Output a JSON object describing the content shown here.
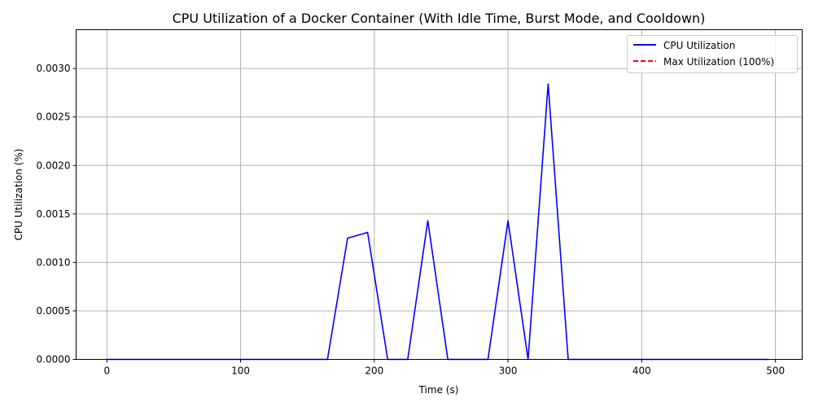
{
  "chart_data": {
    "type": "line",
    "title": "CPU Utilization of a Docker Container (With Idle Time, Burst Mode, and Cooldown)",
    "xlabel": "Time (s)",
    "ylabel": "CPU Utilization (%)",
    "xlim": [
      -23,
      520
    ],
    "ylim": [
      0,
      0.0034
    ],
    "xticks": [
      0,
      100,
      200,
      300,
      400,
      500
    ],
    "yticks": [
      0.0,
      0.0005,
      0.001,
      0.0015,
      0.002,
      0.0025,
      0.003
    ],
    "xtick_labels": [
      "0",
      "100",
      "200",
      "300",
      "400",
      "500"
    ],
    "ytick_labels": [
      "0.0000",
      "0.0005",
      "0.0010",
      "0.0015",
      "0.0020",
      "0.0025",
      "0.0030"
    ],
    "grid": true,
    "legend_position": "top-right",
    "series": [
      {
        "name": "CPU Utilization",
        "color": "#0000ff",
        "style": "solid",
        "x": [
          0,
          165,
          180,
          195,
          210,
          225,
          240,
          255,
          285,
          300,
          315,
          330,
          345,
          495
        ],
        "y": [
          0,
          0,
          0.00125,
          0.00131,
          0,
          0,
          0.00143,
          0,
          0,
          0.00143,
          0,
          0.00284,
          0,
          0
        ]
      },
      {
        "name": "Max Utilization (100%)",
        "color": "#ff0000",
        "style": "dashed",
        "y_constant": 100
      }
    ]
  }
}
